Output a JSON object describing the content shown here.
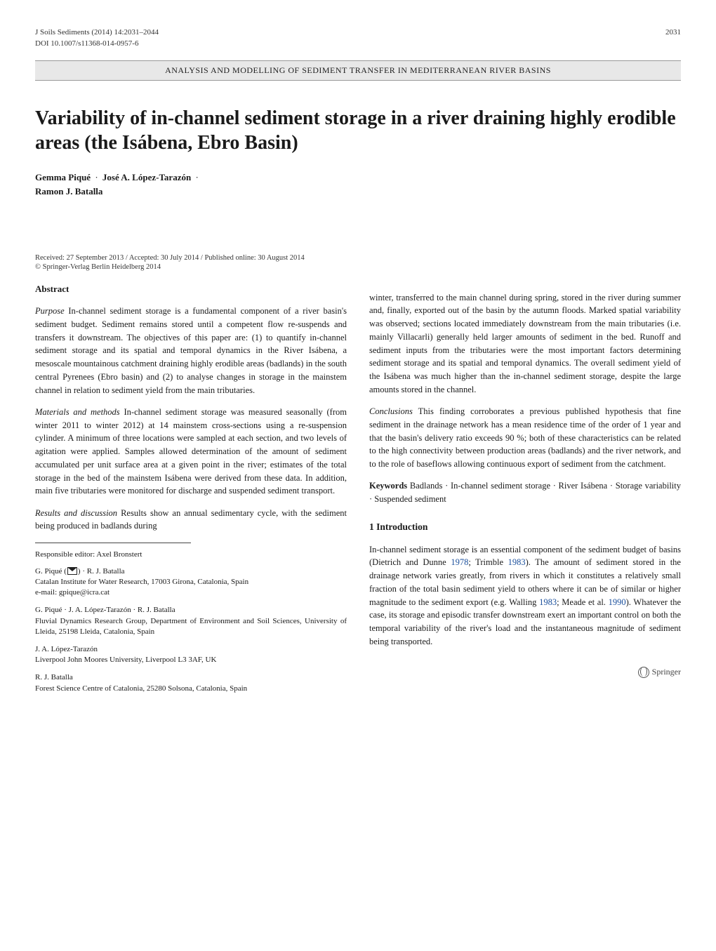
{
  "running_head": {
    "journal": "J Soils Sediments (2014) 14:2031–2044",
    "page_range": "2031"
  },
  "doi": "DOI 10.1007/s11368-014-0957-6",
  "section_banner": "ANALYSIS AND MODELLING OF SEDIMENT TRANSFER IN MEDITERRANEAN RIVER BASINS",
  "title": "Variability of in-channel sediment storage in a river draining highly erodible areas (the Isábena, Ebro Basin)",
  "authors": {
    "a1": "Gemma Piqué",
    "a2": "José A. López-Tarazón",
    "a3": "Ramon J. Batalla",
    "separator": "·"
  },
  "dates_line": "Received: 27 September 2013 / Accepted: 30 July 2014 / Published online: 30 August 2014",
  "copyright_line": "© Springer-Verlag Berlin Heidelberg 2014",
  "abstract": {
    "heading": "Abstract",
    "purpose_label": "Purpose",
    "purpose_text": " In-channel sediment storage is a fundamental component of a river basin's sediment budget. Sediment remains stored until a competent flow re-suspends and transfers it downstream. The objectives of this paper are: (1) to quantify in-channel sediment storage and its spatial and temporal dynamics in the River Isábena, a mesoscale mountainous catchment draining highly erodible areas (badlands) in the south central Pyrenees (Ebro basin) and (2) to analyse changes in storage in the mainstem channel in relation to sediment yield from the main tributaries.",
    "methods_label": "Materials and methods",
    "methods_text": " In-channel sediment storage was measured seasonally (from winter 2011 to winter 2012) at 14 mainstem cross-sections using a re-suspension cylinder. A minimum of three locations were sampled at each section, and two levels of agitation were applied. Samples allowed determination of the amount of sediment accumulated per unit surface area at a given point in the river; estimates of the total storage in the bed of the mainstem Isábena were derived from these data. In addition, main five tributaries were monitored for discharge and suspended sediment transport.",
    "results_label": "Results and discussion",
    "results_text_left": " Results show an annual sedimentary cycle, with the sediment being produced in badlands during",
    "results_text_right": "winter, transferred to the main channel during spring, stored in the river during summer and, finally, exported out of the basin by the autumn floods. Marked spatial variability was observed; sections located immediately downstream from the main tributaries (i.e. mainly Villacarli) generally held larger amounts of sediment in the bed. Runoff and sediment inputs from the tributaries were the most important factors determining sediment storage and its spatial and temporal dynamics. The overall sediment yield of the Isábena was much higher than the in-channel sediment storage, despite the large amounts stored in the channel.",
    "conclusions_label": "Conclusions",
    "conclusions_text": " This finding corroborates a previous published hypothesis that fine sediment in the drainage network has a mean residence time of the order of 1 year and that the basin's delivery ratio exceeds 90 %; both of these characteristics can be related to the high connectivity between production areas (badlands) and the river network, and to the role of baseflows allowing continuous export of sediment from the catchment."
  },
  "keywords": {
    "label": "Keywords",
    "text": " Badlands · In-channel sediment storage · River Isábena · Storage variability · Suspended sediment"
  },
  "intro": {
    "heading": "1 Introduction",
    "p1a": "In-channel sediment storage is an essential component of the sediment budget of basins (Dietrich and Dunne ",
    "c1": "1978",
    "p1b": "; Trimble ",
    "c2": "1983",
    "p1c": "). The amount of sediment stored in the drainage network varies greatly, from rivers in which it constitutes a relatively small fraction of the total basin sediment yield to others where it can be of similar or higher magnitude to the sediment export (e.g. Walling ",
    "c3": "1983",
    "p1d": "; Meade et al. ",
    "c4": "1990",
    "p1e": "). Whatever the case, its storage and episodic transfer downstream exert an important control on both the temporal variability of the river's load and the instantaneous magnitude of sediment being transported."
  },
  "editor_line": "Responsible editor: Axel Bronstert",
  "affiliations": {
    "aff1": {
      "names_a": "G. Piqué (",
      "names_b": ") · R. J. Batalla",
      "addr": "Catalan Institute for Water Research, 17003 Girona, Catalonia, Spain",
      "email": "e-mail: gpique@icra.cat"
    },
    "aff2": {
      "names": "G. Piqué · J. A. López-Tarazón · R. J. Batalla",
      "addr": "Fluvial Dynamics Research Group, Department of Environment and Soil Sciences, University of Lleida, 25198 Lleida, Catalonia, Spain"
    },
    "aff3": {
      "names": "J. A. López-Tarazón",
      "addr": "Liverpool John Moores University, Liverpool L3 3AF, UK"
    },
    "aff4": {
      "names": "R. J. Batalla",
      "addr": "Forest Science Centre of Catalonia, 25280 Solsona, Catalonia, Spain"
    }
  },
  "publisher_mark": "Springer",
  "colors": {
    "link": "#1a4f9c",
    "banner_bg": "#e8e8e8",
    "rule": "#444444",
    "text": "#1a1a1a"
  }
}
